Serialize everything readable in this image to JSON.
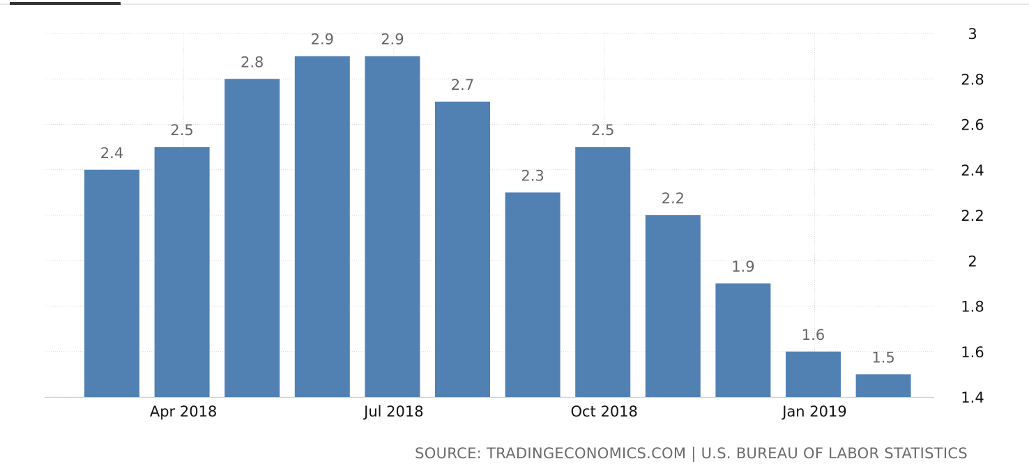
{
  "chart_data": {
    "type": "bar",
    "x": [
      "Mar 2018",
      "Apr 2018",
      "May 2018",
      "Jun 2018",
      "Jul 2018",
      "Aug 2018",
      "Sep 2018",
      "Oct 2018",
      "Nov 2018",
      "Dec 2018",
      "Jan 2019",
      "Feb 2019"
    ],
    "values": [
      2.4,
      2.5,
      2.8,
      2.9,
      2.9,
      2.7,
      2.3,
      2.5,
      2.2,
      1.9,
      1.6,
      1.5
    ],
    "data_labels": [
      "2.4",
      "2.5",
      "2.8",
      "2.9",
      "2.9",
      "2.7",
      "2.3",
      "2.5",
      "2.2",
      "1.9",
      "1.6",
      "1.5"
    ],
    "x_tick_labels": [
      {
        "label": "Apr 2018",
        "index": 1
      },
      {
        "label": "Jul 2018",
        "index": 4
      },
      {
        "label": "Oct 2018",
        "index": 7
      },
      {
        "label": "Jan 2019",
        "index": 10
      }
    ],
    "y_tick_labels": [
      "1.4",
      "1.6",
      "1.8",
      "2",
      "2.2",
      "2.4",
      "2.6",
      "2.8",
      "3"
    ],
    "ylim": [
      1.4,
      3.0
    ],
    "y_axis_side": "right",
    "grid": true,
    "legend": "none",
    "colors": {
      "bar": "#5181b3",
      "grid": "#d9d9d9",
      "data_label": "#666666",
      "axis_text": "#111111"
    }
  },
  "source_text": "SOURCE: TRADINGECONOMICS.COM | U.S. BUREAU OF LABOR STATISTICS"
}
